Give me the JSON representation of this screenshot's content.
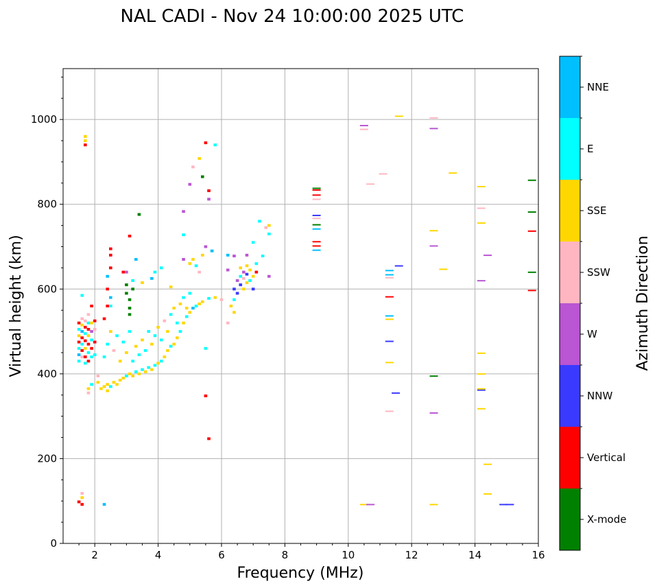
{
  "chart_data": {
    "type": "scatter",
    "title": "NAL CADI - Nov 24 10:00:00 2025 UTC",
    "xlabel": "Frequency (MHz)",
    "ylabel": "Virtual height (km)",
    "xlim": [
      1,
      16
    ],
    "ylim": [
      0,
      1120
    ],
    "xticks": [
      2,
      4,
      6,
      8,
      10,
      12,
      14,
      16
    ],
    "yticks": [
      0,
      200,
      400,
      600,
      800,
      1000
    ],
    "grid": true,
    "colorbar": {
      "label": "Azimuth Direction",
      "categories": [
        "X-mode",
        "Vertical",
        "NNW",
        "W",
        "SSW",
        "SSE",
        "E",
        "NNE"
      ],
      "colors": [
        "#008000",
        "#ff0000",
        "#3a3aff",
        "#ba55d3",
        "#ffb6c1",
        "#ffd700",
        "#00ffff",
        "#00bfff"
      ]
    },
    "points_format": "[frequency_MHz, virtual_height_km, direction_index]",
    "points": [
      [
        1.5,
        98,
        1
      ],
      [
        1.6,
        92,
        1
      ],
      [
        1.6,
        108,
        5
      ],
      [
        1.6,
        118,
        4
      ],
      [
        2.3,
        92,
        7
      ],
      [
        1.5,
        430,
        6
      ],
      [
        1.5,
        445,
        7
      ],
      [
        1.5,
        460,
        6
      ],
      [
        1.5,
        475,
        1
      ],
      [
        1.5,
        490,
        5
      ],
      [
        1.5,
        505,
        6
      ],
      [
        1.5,
        520,
        1
      ],
      [
        1.6,
        440,
        4
      ],
      [
        1.6,
        455,
        1
      ],
      [
        1.6,
        470,
        6
      ],
      [
        1.6,
        485,
        1
      ],
      [
        1.6,
        500,
        7
      ],
      [
        1.6,
        515,
        5
      ],
      [
        1.6,
        530,
        4
      ],
      [
        1.7,
        425,
        6
      ],
      [
        1.7,
        440,
        1
      ],
      [
        1.7,
        460,
        5
      ],
      [
        1.7,
        478,
        1
      ],
      [
        1.7,
        495,
        6
      ],
      [
        1.7,
        510,
        1
      ],
      [
        1.7,
        525,
        4
      ],
      [
        1.8,
        430,
        1
      ],
      [
        1.8,
        450,
        6
      ],
      [
        1.8,
        470,
        1
      ],
      [
        1.8,
        490,
        5
      ],
      [
        1.8,
        505,
        1
      ],
      [
        1.8,
        520,
        6
      ],
      [
        1.8,
        540,
        4
      ],
      [
        1.9,
        440,
        6
      ],
      [
        1.9,
        460,
        1
      ],
      [
        1.9,
        480,
        6
      ],
      [
        1.9,
        500,
        3
      ],
      [
        1.9,
        520,
        5
      ],
      [
        2.0,
        445,
        6
      ],
      [
        2.0,
        475,
        1
      ],
      [
        2.0,
        505,
        4
      ],
      [
        2.0,
        525,
        1
      ],
      [
        1.7,
        940,
        1
      ],
      [
        1.7,
        950,
        5
      ],
      [
        1.7,
        960,
        5
      ],
      [
        1.9,
        560,
        1
      ],
      [
        1.6,
        585,
        6
      ],
      [
        1.8,
        365,
        5
      ],
      [
        1.8,
        355,
        4
      ],
      [
        1.9,
        375,
        6
      ],
      [
        2.1,
        380,
        5
      ],
      [
        2.1,
        395,
        4
      ],
      [
        2.2,
        365,
        5
      ],
      [
        2.3,
        370,
        5
      ],
      [
        2.4,
        375,
        5
      ],
      [
        2.4,
        360,
        5
      ],
      [
        2.5,
        370,
        6
      ],
      [
        2.6,
        380,
        5
      ],
      [
        2.7,
        375,
        5
      ],
      [
        2.8,
        385,
        5
      ],
      [
        2.9,
        390,
        5
      ],
      [
        3.0,
        395,
        6
      ],
      [
        3.1,
        400,
        5
      ],
      [
        3.2,
        395,
        5
      ],
      [
        3.3,
        405,
        6
      ],
      [
        3.4,
        400,
        5
      ],
      [
        3.5,
        410,
        6
      ],
      [
        3.6,
        405,
        5
      ],
      [
        3.7,
        415,
        6
      ],
      [
        3.8,
        410,
        5
      ],
      [
        3.9,
        420,
        6
      ],
      [
        4.0,
        425,
        5
      ],
      [
        4.1,
        430,
        6
      ],
      [
        4.2,
        440,
        5
      ],
      [
        4.3,
        455,
        5
      ],
      [
        4.4,
        465,
        6
      ],
      [
        4.5,
        470,
        5
      ],
      [
        4.6,
        485,
        5
      ],
      [
        4.7,
        500,
        6
      ],
      [
        4.8,
        520,
        5
      ],
      [
        4.9,
        535,
        6
      ],
      [
        5.0,
        545,
        5
      ],
      [
        5.1,
        555,
        7
      ],
      [
        5.2,
        560,
        6
      ],
      [
        5.3,
        565,
        5
      ],
      [
        5.4,
        570,
        5
      ],
      [
        5.6,
        578,
        6
      ],
      [
        5.8,
        580,
        5
      ],
      [
        6.0,
        575,
        4
      ],
      [
        2.3,
        440,
        6
      ],
      [
        2.4,
        470,
        6
      ],
      [
        2.5,
        500,
        5
      ],
      [
        2.6,
        455,
        4
      ],
      [
        2.7,
        490,
        6
      ],
      [
        2.8,
        430,
        5
      ],
      [
        2.9,
        475,
        6
      ],
      [
        3.0,
        450,
        5
      ],
      [
        3.1,
        500,
        6
      ],
      [
        3.2,
        430,
        6
      ],
      [
        3.3,
        465,
        5
      ],
      [
        3.4,
        445,
        6
      ],
      [
        3.5,
        480,
        5
      ],
      [
        3.6,
        455,
        6
      ],
      [
        3.7,
        500,
        6
      ],
      [
        3.8,
        470,
        5
      ],
      [
        3.9,
        490,
        6
      ],
      [
        4.0,
        510,
        5
      ],
      [
        4.1,
        480,
        6
      ],
      [
        4.2,
        525,
        4
      ],
      [
        4.3,
        500,
        5
      ],
      [
        4.4,
        540,
        6
      ],
      [
        4.5,
        555,
        5
      ],
      [
        4.6,
        520,
        6
      ],
      [
        4.7,
        565,
        5
      ],
      [
        4.8,
        580,
        6
      ],
      [
        4.9,
        555,
        5
      ],
      [
        5.0,
        590,
        6
      ],
      [
        2.3,
        530,
        1
      ],
      [
        2.4,
        560,
        1
      ],
      [
        2.4,
        600,
        1
      ],
      [
        2.4,
        630,
        7
      ],
      [
        2.5,
        650,
        1
      ],
      [
        2.5,
        680,
        1
      ],
      [
        2.5,
        695,
        1
      ],
      [
        2.5,
        560,
        6
      ],
      [
        2.5,
        580,
        7
      ],
      [
        2.9,
        640,
        1
      ],
      [
        3.0,
        610,
        0
      ],
      [
        3.0,
        590,
        0
      ],
      [
        3.1,
        575,
        0
      ],
      [
        3.1,
        555,
        0
      ],
      [
        3.1,
        540,
        0
      ],
      [
        3.2,
        600,
        0
      ],
      [
        3.2,
        620,
        6
      ],
      [
        3.3,
        670,
        7
      ],
      [
        3.4,
        776,
        0
      ],
      [
        3.1,
        725,
        1
      ],
      [
        3.0,
        640,
        3
      ],
      [
        3.5,
        615,
        5
      ],
      [
        3.8,
        625,
        7
      ],
      [
        3.9,
        640,
        6
      ],
      [
        4.1,
        650,
        6
      ],
      [
        4.4,
        605,
        5
      ],
      [
        4.8,
        670,
        3
      ],
      [
        4.8,
        728,
        6
      ],
      [
        4.8,
        783,
        3
      ],
      [
        5.0,
        660,
        5
      ],
      [
        5.1,
        670,
        5
      ],
      [
        5.2,
        655,
        6
      ],
      [
        5.3,
        640,
        4
      ],
      [
        5.4,
        680,
        5
      ],
      [
        5.5,
        700,
        3
      ],
      [
        5.0,
        847,
        3
      ],
      [
        5.1,
        888,
        4
      ],
      [
        5.3,
        908,
        5
      ],
      [
        5.4,
        865,
        0
      ],
      [
        5.5,
        945,
        1
      ],
      [
        5.6,
        812,
        3
      ],
      [
        5.6,
        832,
        1
      ],
      [
        5.8,
        940,
        6
      ],
      [
        5.5,
        348,
        1
      ],
      [
        5.6,
        247,
        1
      ],
      [
        5.5,
        460,
        6
      ],
      [
        5.7,
        690,
        7
      ],
      [
        6.2,
        520,
        4
      ],
      [
        6.3,
        560,
        5
      ],
      [
        6.4,
        545,
        5
      ],
      [
        6.4,
        575,
        6
      ],
      [
        6.4,
        600,
        2
      ],
      [
        6.5,
        590,
        2
      ],
      [
        6.5,
        620,
        3
      ],
      [
        6.6,
        610,
        2
      ],
      [
        6.6,
        630,
        6
      ],
      [
        6.6,
        650,
        5
      ],
      [
        6.7,
        600,
        5
      ],
      [
        6.7,
        625,
        4
      ],
      [
        6.7,
        640,
        3
      ],
      [
        6.8,
        615,
        5
      ],
      [
        6.8,
        635,
        2
      ],
      [
        6.8,
        655,
        5
      ],
      [
        6.9,
        620,
        6
      ],
      [
        6.9,
        645,
        5
      ],
      [
        7.0,
        600,
        2
      ],
      [
        7.0,
        630,
        5
      ],
      [
        7.1,
        660,
        6
      ],
      [
        7.0,
        710,
        6
      ],
      [
        7.1,
        640,
        1
      ],
      [
        6.4,
        678,
        3
      ],
      [
        6.2,
        645,
        3
      ],
      [
        6.8,
        680,
        3
      ],
      [
        7.2,
        760,
        6
      ],
      [
        7.3,
        678,
        6
      ],
      [
        7.5,
        750,
        5
      ],
      [
        7.5,
        730,
        6
      ],
      [
        7.5,
        630,
        3
      ],
      [
        6.2,
        680,
        7
      ],
      [
        7.4,
        745,
        4
      ],
      [
        9.0,
        690,
        7
      ],
      [
        9.0,
        700,
        1
      ],
      [
        9.0,
        710,
        1
      ],
      [
        9.0,
        740,
        7
      ],
      [
        9.0,
        750,
        0
      ],
      [
        9.0,
        765,
        4
      ],
      [
        9.0,
        772,
        2
      ],
      [
        9.0,
        810,
        4
      ],
      [
        9.0,
        820,
        1
      ],
      [
        9.0,
        832,
        1
      ],
      [
        9.0,
        836,
        0
      ],
      [
        10.5,
        90,
        5
      ],
      [
        10.7,
        90,
        3
      ],
      [
        10.5,
        975,
        4
      ],
      [
        10.5,
        984,
        3
      ],
      [
        10.7,
        846,
        4
      ],
      [
        11.1,
        870,
        4
      ],
      [
        11.6,
        1006,
        5
      ],
      [
        11.3,
        310,
        4
      ],
      [
        11.3,
        425,
        5
      ],
      [
        11.3,
        475,
        2
      ],
      [
        11.3,
        527,
        5
      ],
      [
        11.3,
        535,
        7
      ],
      [
        11.3,
        580,
        1
      ],
      [
        11.3,
        625,
        4
      ],
      [
        11.3,
        632,
        7
      ],
      [
        11.3,
        642,
        7
      ],
      [
        11.5,
        353,
        2
      ],
      [
        11.6,
        653,
        2
      ],
      [
        12.7,
        90,
        5
      ],
      [
        12.7,
        306,
        3
      ],
      [
        12.7,
        393,
        0
      ],
      [
        12.7,
        700,
        3
      ],
      [
        12.7,
        736,
        5
      ],
      [
        12.7,
        977,
        3
      ],
      [
        12.7,
        1002,
        4
      ],
      [
        13.0,
        645,
        5
      ],
      [
        13.3,
        872,
        5
      ],
      [
        14.2,
        316,
        5
      ],
      [
        14.2,
        360,
        2
      ],
      [
        14.2,
        363,
        5
      ],
      [
        14.2,
        398,
        5
      ],
      [
        14.2,
        447,
        5
      ],
      [
        14.2,
        618,
        3
      ],
      [
        14.2,
        754,
        5
      ],
      [
        14.2,
        789,
        4
      ],
      [
        14.2,
        840,
        5
      ],
      [
        14.4,
        115,
        5
      ],
      [
        14.4,
        185,
        5
      ],
      [
        14.4,
        678,
        3
      ],
      [
        14.9,
        90,
        2
      ],
      [
        15.1,
        90,
        2
      ],
      [
        15.8,
        595,
        1
      ],
      [
        15.8,
        638,
        0
      ],
      [
        15.8,
        735,
        1
      ],
      [
        15.8,
        780,
        0
      ],
      [
        15.8,
        855,
        0
      ]
    ]
  }
}
